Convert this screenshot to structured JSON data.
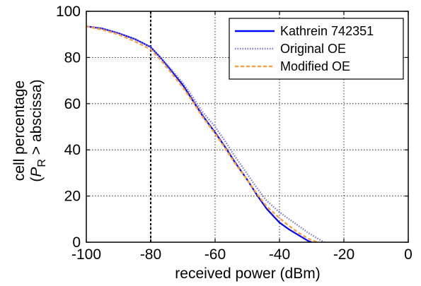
{
  "chart_data": {
    "type": "line",
    "xlabel": "received power (dBm)",
    "ylabel": {
      "line1": "cell percentage",
      "line2_open": "(",
      "line2_var": "P",
      "line2_sub": "R",
      "line2_rest": " > abscissa)"
    },
    "xlim": [
      -100,
      0
    ],
    "ylim": [
      0,
      100
    ],
    "xticks": [
      -100,
      -80,
      -60,
      -40,
      -20,
      0
    ],
    "yticks": [
      0,
      20,
      40,
      60,
      80,
      100
    ],
    "grid": true,
    "legend_position": "top-right",
    "marker_x": -80,
    "series": [
      {
        "name": "Kathrein 742351",
        "color": "#0000ff",
        "style": "solid",
        "x": [
          -100,
          -95,
          -90,
          -85,
          -80,
          -77,
          -74,
          -70,
          -67,
          -64,
          -60,
          -57,
          -54,
          -50,
          -47,
          -44,
          -40,
          -37,
          -34,
          -31,
          -30
        ],
        "y": [
          93.5,
          92.5,
          90.5,
          88,
          84.5,
          80,
          75,
          68,
          61.5,
          55,
          47.5,
          41.5,
          35,
          27,
          20.5,
          14.5,
          8.5,
          5.5,
          3,
          0.5,
          0
        ]
      },
      {
        "name": "Original OE",
        "color": "#7a7ad8",
        "style": "dotted",
        "x": [
          -100,
          -95,
          -90,
          -85,
          -80,
          -77,
          -74,
          -70,
          -67,
          -64,
          -60,
          -57,
          -54,
          -50,
          -47,
          -44,
          -40,
          -37,
          -34,
          -31,
          -28,
          -26.5,
          -26
        ],
        "y": [
          93.5,
          92.5,
          90.5,
          88,
          84.5,
          80,
          75.5,
          69,
          63,
          56.5,
          50,
          44,
          37.5,
          29.5,
          23.5,
          18,
          13,
          10,
          7,
          4,
          1.5,
          0.3,
          0
        ]
      },
      {
        "name": "Modified OE",
        "color": "#ffa040",
        "style": "dashed",
        "x": [
          -100,
          -95,
          -90,
          -85,
          -80,
          -77,
          -74,
          -70,
          -67,
          -64,
          -60,
          -57,
          -54,
          -50,
          -47,
          -44,
          -40,
          -37,
          -34,
          -31,
          -29,
          -28
        ],
        "y": [
          93.5,
          92,
          90,
          87,
          83.5,
          79,
          74,
          67,
          61,
          54.5,
          47,
          41,
          34.5,
          27,
          21,
          15.5,
          10.5,
          7,
          4,
          1.5,
          0.4,
          0
        ]
      }
    ]
  }
}
